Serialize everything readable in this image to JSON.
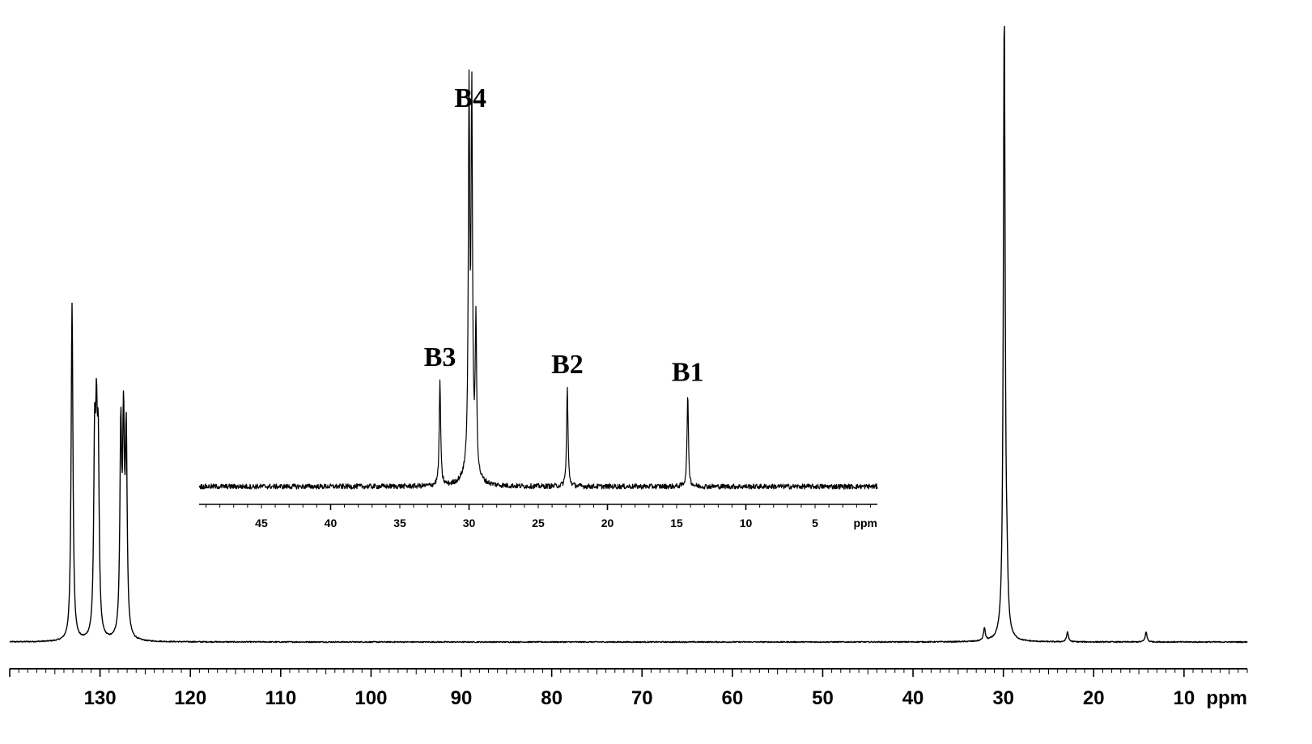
{
  "chart_data": [
    {
      "type": "line",
      "title": "",
      "xlabel": "ppm",
      "ylabel": "",
      "xlim": [
        140,
        3
      ],
      "x_reversed": true,
      "grid": false,
      "major_ticks": [
        130,
        120,
        110,
        100,
        90,
        80,
        70,
        60,
        50,
        40,
        30,
        20,
        10
      ],
      "tick_labels": [
        "130",
        "120",
        "110",
        "100",
        "90",
        "80",
        "70",
        "60",
        "50",
        "40",
        "30",
        "20",
        "10"
      ],
      "unit_label": "ppm",
      "series": [
        {
          "peaks": [
            {
              "ppm": 133.1,
              "intensity": 0.54
            },
            {
              "ppm": 130.6,
              "intensity": 0.28
            },
            {
              "ppm": 130.4,
              "intensity": 0.275
            },
            {
              "ppm": 130.2,
              "intensity": 0.27
            },
            {
              "ppm": 127.7,
              "intensity": 0.32
            },
            {
              "ppm": 127.4,
              "intensity": 0.315
            },
            {
              "ppm": 127.1,
              "intensity": 0.31
            },
            {
              "ppm": 32.1,
              "intensity": 0.02
            },
            {
              "ppm": 29.9,
              "intensity": 1.0
            },
            {
              "ppm": 29.6,
              "intensity": 0.06
            },
            {
              "ppm": 22.9,
              "intensity": 0.016
            },
            {
              "ppm": 14.2,
              "intensity": 0.016
            }
          ]
        }
      ]
    },
    {
      "type": "line",
      "title": "",
      "xlabel": "ppm",
      "ylabel": "",
      "xlim": [
        49.5,
        0.5
      ],
      "x_reversed": true,
      "grid": false,
      "major_ticks": [
        45,
        40,
        35,
        30,
        25,
        20,
        15,
        10,
        5
      ],
      "tick_labels": [
        "45",
        "40",
        "35",
        "30",
        "25",
        "20",
        "15",
        "10",
        "5"
      ],
      "unit_label": "ppm",
      "annotations": [
        {
          "label": "B3",
          "ppm": 32.1
        },
        {
          "label": "B4",
          "ppm": 29.9
        },
        {
          "label": "B2",
          "ppm": 22.9
        },
        {
          "label": "B1",
          "ppm": 14.2
        }
      ],
      "series": [
        {
          "peaks": [
            {
              "ppm": 32.1,
              "intensity": 0.29
            },
            {
              "ppm": 30.0,
              "intensity": 1.0
            },
            {
              "ppm": 29.8,
              "intensity": 1.0
            },
            {
              "ppm": 29.5,
              "intensity": 0.41
            },
            {
              "ppm": 22.9,
              "intensity": 0.27
            },
            {
              "ppm": 14.2,
              "intensity": 0.25
            }
          ]
        }
      ]
    }
  ]
}
